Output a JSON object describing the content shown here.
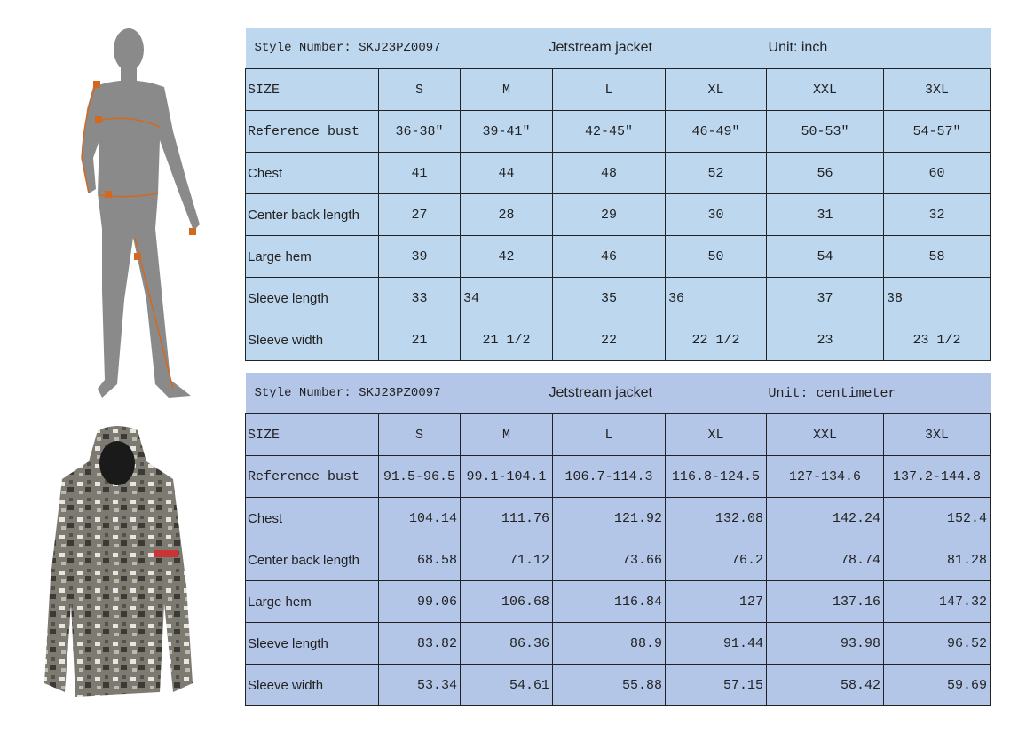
{
  "inch_table": {
    "style_number": "Style Number: SKJ23PZ0097",
    "product": "Jetstream jacket",
    "unit": "Unit: inch",
    "headers": [
      "SIZE",
      "S",
      "M",
      "L",
      "XL",
      "XXL",
      "3XL"
    ],
    "rows": [
      {
        "label": "Reference bust",
        "values": [
          "36-38″",
          "39-41″",
          "42-45″",
          "46-49″",
          "50-53″",
          "54-57″"
        ]
      },
      {
        "label": "Chest",
        "values": [
          "41",
          "44",
          "48",
          "52",
          "56",
          "60"
        ]
      },
      {
        "label": "Center back length",
        "values": [
          "27",
          "28",
          "29",
          "30",
          "31",
          "32"
        ]
      },
      {
        "label": "Large hem",
        "values": [
          "39",
          "42",
          "46",
          "50",
          "54",
          "58"
        ]
      },
      {
        "label": "Sleeve length",
        "values": [
          "33",
          "34",
          "35",
          "36",
          "37",
          "38"
        ]
      },
      {
        "label": "Sleeve width",
        "values": [
          "21",
          "21 1/2",
          "22",
          "22 1/2",
          "23",
          "23 1/2"
        ]
      }
    ]
  },
  "cm_table": {
    "style_number": "Style Number: SKJ23PZ0097",
    "product": "Jetstream jacket",
    "unit": "Unit: centimeter",
    "headers": [
      "SIZE",
      "S",
      "M",
      "L",
      "XL",
      "XXL",
      "3XL"
    ],
    "rows": [
      {
        "label": "Reference bust",
        "values": [
          "91.5-96.5",
          "99.1-104.1",
          "106.7-114.3",
          "116.8-124.5",
          "127-134.6",
          "137.2-144.8"
        ]
      },
      {
        "label": "Chest",
        "values": [
          "104.14",
          "111.76",
          "121.92",
          "132.08",
          "142.24",
          "152.4"
        ]
      },
      {
        "label": "Center back length",
        "values": [
          "68.58",
          "71.12",
          "73.66",
          "76.2",
          "78.74",
          "81.28"
        ]
      },
      {
        "label": "Large hem",
        "values": [
          "99.06",
          "106.68",
          "116.84",
          "127",
          "137.16",
          "147.32"
        ]
      },
      {
        "label": "Sleeve length",
        "values": [
          "83.82",
          "86.36",
          "88.9",
          "91.44",
          "93.98",
          "96.52"
        ]
      },
      {
        "label": "Sleeve width",
        "values": [
          "53.34",
          "54.61",
          "55.88",
          "57.15",
          "58.42",
          "59.69"
        ]
      }
    ]
  },
  "figure": {
    "markers": [
      "1",
      "2",
      "3",
      "4",
      "5"
    ],
    "accent": "#d2691e"
  }
}
